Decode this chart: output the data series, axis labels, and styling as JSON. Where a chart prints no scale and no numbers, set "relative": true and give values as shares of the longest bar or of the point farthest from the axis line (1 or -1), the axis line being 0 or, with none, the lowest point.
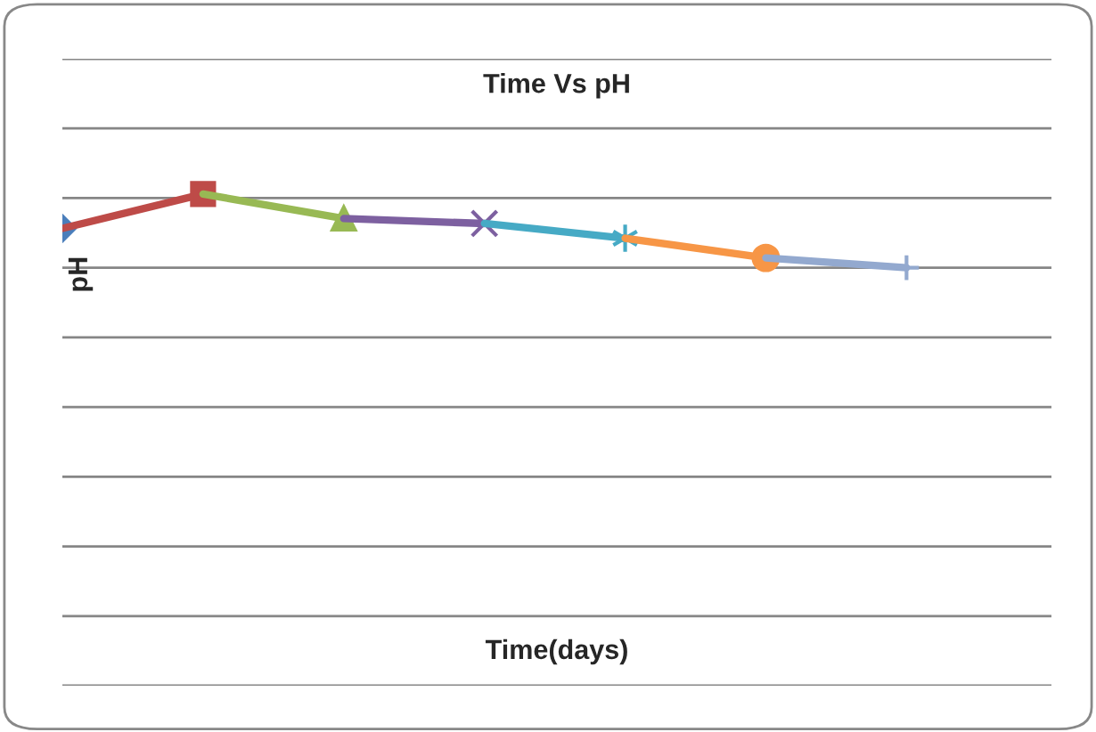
{
  "chart_data": {
    "type": "line",
    "title": "Time Vs pH",
    "xlabel": "Time(days)",
    "ylabel": "pH",
    "relative": true,
    "categories": [
      null,
      null,
      null,
      null,
      null,
      null,
      null
    ],
    "series": [
      {
        "values": [
          0.93,
          null,
          null,
          null,
          null,
          null,
          null
        ],
        "color": "#4a7ebb",
        "marker": [
          "diamond",
          "none",
          "none",
          "none",
          "none",
          "none",
          "none"
        ]
      },
      {
        "values": [
          0.93,
          1,
          null,
          null,
          null,
          null,
          null
        ],
        "color": "#be4b48",
        "marker": [
          "none",
          "square",
          "none",
          "none",
          "none",
          "none",
          "none"
        ]
      },
      {
        "values": [
          null,
          1,
          0.95,
          null,
          null,
          null,
          null
        ],
        "color": "#98b954",
        "marker": [
          "none",
          "none",
          "triangle",
          "none",
          "none",
          "none",
          "none"
        ]
      },
      {
        "values": [
          null,
          null,
          0.95,
          0.94,
          null,
          null,
          null
        ],
        "color": "#7d60a0",
        "marker": [
          "none",
          "none",
          "none",
          "cross",
          "none",
          "none",
          "none"
        ]
      },
      {
        "values": [
          null,
          null,
          null,
          0.94,
          0.91,
          null,
          null
        ],
        "color": "#46aac5",
        "marker": [
          "none",
          "none",
          "none",
          "none",
          "star",
          "none",
          "none"
        ]
      },
      {
        "values": [
          null,
          null,
          null,
          null,
          0.91,
          0.87,
          null
        ],
        "color": "#f79646",
        "marker": [
          "none",
          "none",
          "none",
          "none",
          "none",
          "circle",
          "none"
        ]
      },
      {
        "values": [
          null,
          null,
          null,
          null,
          null,
          0.87,
          0.85
        ],
        "color": "#93a9cf",
        "marker": [
          "none",
          "none",
          "none",
          "none",
          "none",
          "none",
          "plus"
        ]
      }
    ],
    "grid": "y",
    "legend": false,
    "tick_labels": false
  }
}
